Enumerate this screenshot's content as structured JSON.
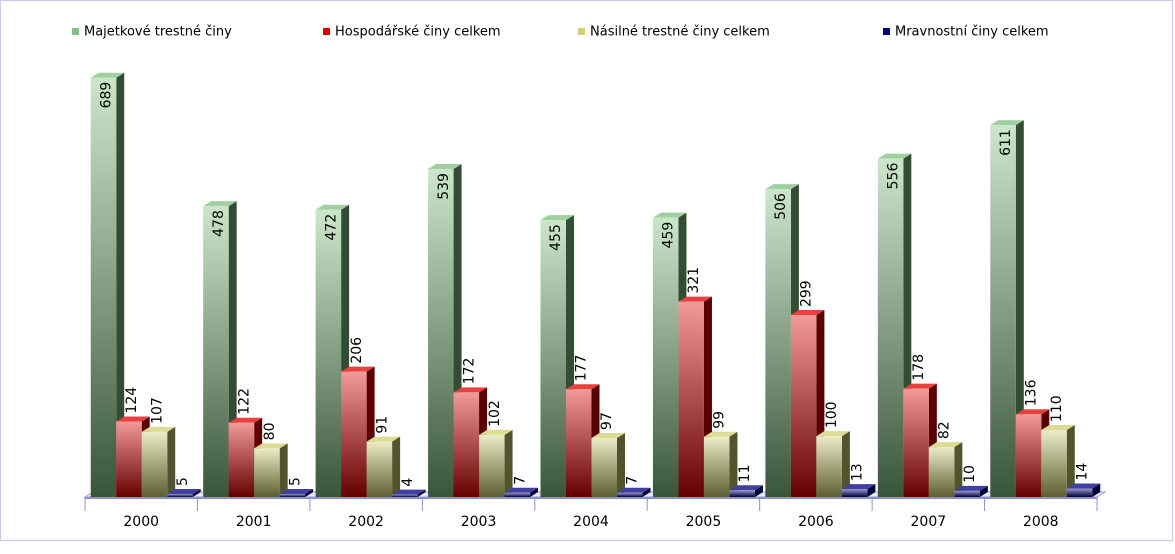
{
  "chart_data": {
    "type": "bar",
    "categories": [
      "2000",
      "2001",
      "2002",
      "2003",
      "2004",
      "2005",
      "2006",
      "2007",
      "2008"
    ],
    "series": [
      {
        "name": "Majetkové trestné činy",
        "color": "#80c080",
        "values": [
          689,
          478,
          472,
          539,
          455,
          459,
          506,
          556,
          611
        ]
      },
      {
        "name": "Hospodářské činy celkem",
        "color": "#e00000",
        "values": [
          124,
          122,
          206,
          172,
          177,
          321,
          299,
          178,
          136
        ]
      },
      {
        "name": "Násilné trestné činy celkem",
        "color": "#d0d070",
        "values": [
          107,
          80,
          91,
          102,
          97,
          99,
          100,
          82,
          110
        ]
      },
      {
        "name": "Mravnostní činy celkem",
        "color": "#000080",
        "values": [
          5,
          5,
          4,
          7,
          7,
          11,
          13,
          10,
          14
        ]
      }
    ],
    "ylim": [
      0,
      700
    ],
    "legend": "top"
  }
}
